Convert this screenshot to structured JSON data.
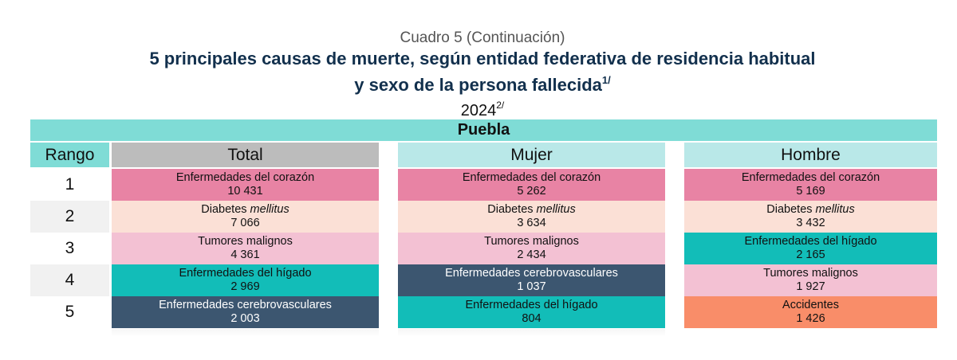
{
  "header": {
    "subtitle": "Cuadro 5 (Continuación)",
    "title_line1": "5 principales causas de muerte, según entidad federativa de residencia habitual",
    "title_line2": "y sexo de la persona fallecida",
    "title_note": "1/",
    "year": "2024",
    "year_note": "2/"
  },
  "table": {
    "state": "Puebla",
    "columns": {
      "rango": "Rango",
      "total": "Total",
      "mujer": "Mujer",
      "hombre": "Hombre"
    },
    "colors": {
      "corazon": "#e883a4",
      "diabetes": "#fbe0d6",
      "tumores": "#f3c1d3",
      "higado": "#12bdb8",
      "cerebro": "#3c5670",
      "accidentes": "#f98d69"
    },
    "rows": [
      {
        "rank": "1",
        "total": {
          "cause": "Enfermedades del corazón",
          "value": "10 431",
          "color": "#e883a4"
        },
        "mujer": {
          "cause": "Enfermedades del corazón",
          "value": "5 262",
          "color": "#e883a4"
        },
        "hombre": {
          "cause": "Enfermedades del corazón",
          "value": "5 169",
          "color": "#e883a4"
        }
      },
      {
        "rank": "2",
        "total": {
          "cause": "Diabetes",
          "cause_italic": "mellitus",
          "value": "7 066",
          "color": "#fbe0d6"
        },
        "mujer": {
          "cause": "Diabetes",
          "cause_italic": "mellitus",
          "value": "3 634",
          "color": "#fbe0d6"
        },
        "hombre": {
          "cause": "Diabetes",
          "cause_italic": "mellitus",
          "value": "3 432",
          "color": "#fbe0d6"
        }
      },
      {
        "rank": "3",
        "total": {
          "cause": "Tumores malignos",
          "value": "4 361",
          "color": "#f3c1d3"
        },
        "mujer": {
          "cause": "Tumores malignos",
          "value": "2 434",
          "color": "#f3c1d3"
        },
        "hombre": {
          "cause": "Enfermedades del hígado",
          "value": "2 165",
          "color": "#12bdb8"
        }
      },
      {
        "rank": "4",
        "total": {
          "cause": "Enfermedades del hígado",
          "value": "2 969",
          "color": "#12bdb8"
        },
        "mujer": {
          "cause": "Enfermedades cerebrovasculares",
          "value": "1 037",
          "color": "#3c5670",
          "text_color": "#ffffff"
        },
        "hombre": {
          "cause": "Tumores malignos",
          "value": "1 927",
          "color": "#f3c1d3"
        }
      },
      {
        "rank": "5",
        "total": {
          "cause": "Enfermedades cerebrovasculares",
          "value": "2 003",
          "color": "#3c5670",
          "text_color": "#ffffff"
        },
        "mujer": {
          "cause": "Enfermedades del hígado",
          "value": "804",
          "color": "#12bdb8"
        },
        "hombre": {
          "cause": "Accidentes",
          "value": "1 426",
          "color": "#f98d69"
        }
      }
    ]
  }
}
